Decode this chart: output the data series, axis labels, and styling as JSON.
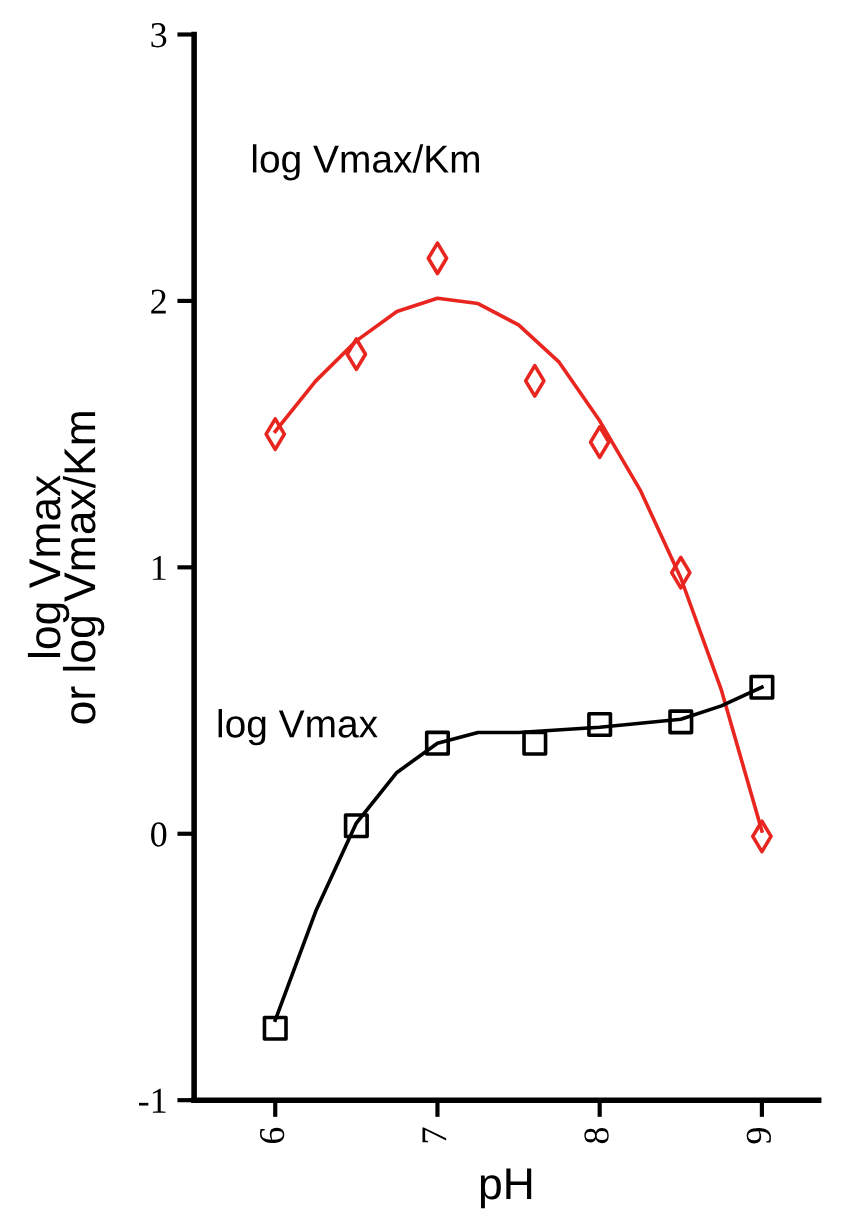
{
  "chart_data": {
    "type": "scatter",
    "xlabel": "pH",
    "ylabel": "log Vmax\nor log Vmax/Km",
    "xlim": [
      5.5,
      9.35
    ],
    "xticks": [
      6,
      7,
      8,
      9
    ],
    "ylim": [
      -1,
      3
    ],
    "yticks": [
      -1,
      0,
      1,
      2,
      3
    ],
    "grid": false,
    "legend": false,
    "series": [
      {
        "name": "log Vmax/Km",
        "marker": "diamond",
        "color": "#e8261f",
        "x": [
          6,
          6.5,
          7,
          7.6,
          8,
          8.5,
          9
        ],
        "values": [
          1.5,
          1.8,
          2.16,
          1.7,
          1.47,
          0.98,
          -0.01
        ]
      },
      {
        "type": "line",
        "marker": "none",
        "color": "#e8261f",
        "x": [
          6,
          6.25,
          6.5,
          6.75,
          7,
          7.25,
          7.5,
          7.75,
          8,
          8.25,
          8.5,
          8.75,
          9
        ],
        "values": [
          1.51,
          1.7,
          1.85,
          1.96,
          2.01,
          1.99,
          1.91,
          1.77,
          1.55,
          1.29,
          0.96,
          0.54,
          0.01
        ]
      },
      {
        "name": "log Vmax",
        "marker": "square",
        "color": "#000000",
        "x": [
          6,
          6.5,
          7,
          7.6,
          8,
          8.5,
          9
        ],
        "values": [
          -0.73,
          0.03,
          0.34,
          0.34,
          0.41,
          0.42,
          0.55
        ]
      },
      {
        "type": "line",
        "marker": "none",
        "color": "#000000",
        "x": [
          6,
          6.25,
          6.5,
          6.75,
          7,
          7.25,
          7.5,
          8,
          8.5,
          8.75,
          9
        ],
        "values": [
          -0.7,
          -0.29,
          0.04,
          0.23,
          0.34,
          0.38,
          0.38,
          0.4,
          0.43,
          0.48,
          0.55
        ]
      }
    ]
  }
}
